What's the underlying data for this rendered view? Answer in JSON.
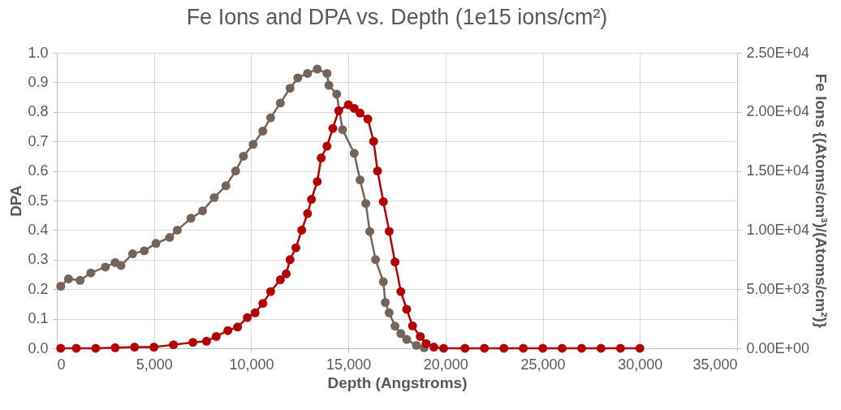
{
  "chart_data": {
    "type": "line",
    "title": "Fe Ions and DPA vs. Depth (1e15 ions/cm²)",
    "xlabel": "Depth (Angstroms)",
    "ylabel": "DPA",
    "y2label": "Fe Ions {(Atoms/cm³)/(Atoms/cm²)}",
    "xlim": [
      0,
      35000
    ],
    "xticks": [
      0,
      {
        "value": 5000,
        "label": "5,000"
      },
      {
        "value": 10000,
        "label": "10,000"
      },
      {
        "value": 15000,
        "label": "15,000"
      },
      {
        "value": 20000,
        "label": "20,000"
      },
      {
        "value": 25000,
        "label": "25,000"
      },
      {
        "value": 30000,
        "label": "30,000"
      },
      {
        "value": 35000,
        "label": "35,000"
      }
    ],
    "ylim": [
      0,
      1
    ],
    "yticks": [
      {
        "value": 0,
        "label": "0.0"
      },
      0.1,
      0.2,
      0.3,
      0.4,
      0.5,
      0.6,
      0.7,
      0.8,
      0.9,
      {
        "value": 1,
        "label": "1.0"
      }
    ],
    "y2lim": [
      0,
      25000
    ],
    "y2ticks": [
      {
        "value": 0,
        "label": "0.00E+00"
      },
      {
        "value": 5000,
        "label": "5.00E+03"
      },
      {
        "value": 10000,
        "label": "1.00E+04"
      },
      {
        "value": 15000,
        "label": "1.50E+04"
      },
      {
        "value": 20000,
        "label": "2.00E+04"
      },
      {
        "value": 25000,
        "label": "2.50E+04"
      }
    ],
    "grid": true,
    "marker": "circle",
    "line_style": "solid",
    "series": [
      {
        "color": "#756459",
        "x": [
          200,
          600,
          1200,
          1750,
          2500,
          3000,
          3300,
          3900,
          4500,
          5100,
          5800,
          6200,
          6900,
          7500,
          8100,
          8700,
          9200,
          9600,
          10100,
          10600,
          11000,
          11500,
          12000,
          12400,
          12900,
          13400,
          13900,
          14000,
          14400,
          14700,
          15300,
          15600,
          15900,
          16100,
          16400,
          16800,
          16900,
          17100,
          17400,
          17700,
          18000,
          18500,
          18900
        ],
        "values": [
          0.21,
          0.235,
          0.23,
          0.255,
          0.275,
          0.29,
          0.28,
          0.32,
          0.33,
          0.355,
          0.375,
          0.4,
          0.44,
          0.465,
          0.51,
          0.55,
          0.6,
          0.65,
          0.69,
          0.735,
          0.78,
          0.83,
          0.88,
          0.915,
          0.93,
          0.945,
          0.93,
          0.89,
          0.86,
          0.74,
          0.66,
          0.57,
          0.49,
          0.395,
          0.3,
          0.225,
          0.155,
          0.12,
          0.075,
          0.05,
          0.03,
          0.01,
          0.002
        ]
      },
      {
        "color": "#b00000",
        "axis": "y2",
        "x": [
          200,
          1000,
          2000,
          3000,
          4000,
          5000,
          6000,
          7000,
          7700,
          8200,
          8800,
          9300,
          9800,
          10200,
          10600,
          11000,
          11500,
          11800,
          12000,
          12300,
          12600,
          12900,
          13100,
          13400,
          13600,
          13900,
          14200,
          14500,
          15000,
          15300,
          15600,
          16000,
          16300,
          16500,
          16800,
          17100,
          17400,
          17700,
          18000,
          18300,
          18700,
          19000,
          19400,
          19900,
          21000,
          22000,
          23000,
          24000,
          25000,
          26000,
          27000,
          28000,
          29000,
          30000
        ],
        "values": [
          0,
          0,
          0,
          50,
          100,
          100,
          300,
          500,
          600,
          1000,
          1500,
          1800,
          2600,
          3000,
          3800,
          4800,
          5800,
          6300,
          7500,
          8500,
          10000,
          11400,
          12600,
          14100,
          16100,
          17100,
          18600,
          20100,
          20600,
          20300,
          19900,
          19400,
          17500,
          15000,
          12400,
          9900,
          7300,
          4800,
          3300,
          1900,
          1000,
          400,
          100,
          0,
          0,
          0,
          0,
          0,
          0,
          0,
          0,
          0,
          0,
          0
        ]
      }
    ]
  }
}
